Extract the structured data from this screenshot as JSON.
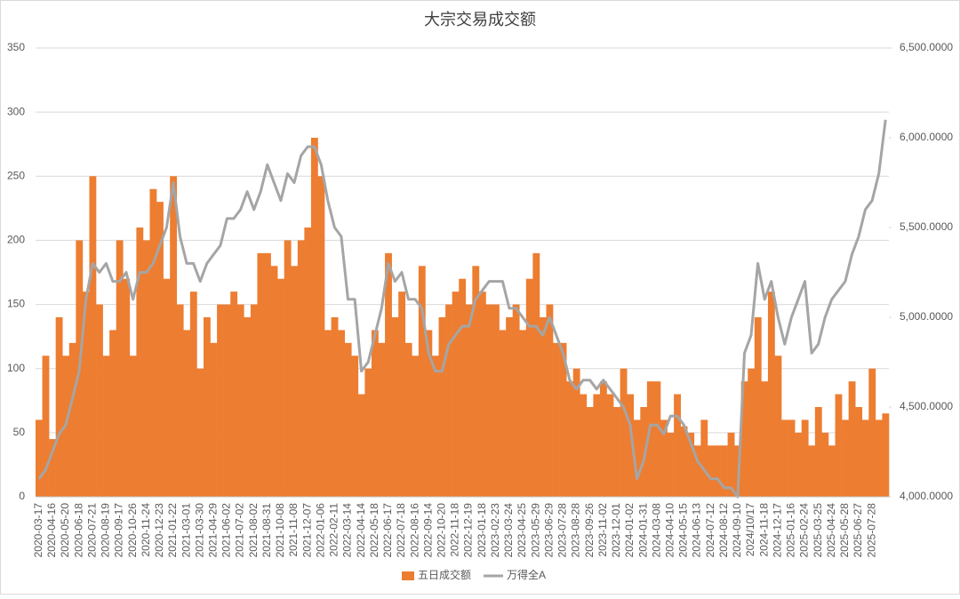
{
  "chart_data": {
    "type": "bar",
    "title": "大宗交易成交额",
    "categories": [
      "2020-03-17",
      null,
      "2020-04-16",
      null,
      "2020-05-20",
      null,
      "2020-06-18",
      null,
      "2020-07-21",
      null,
      "2020-08-19",
      null,
      "2020-09-17",
      null,
      "2020-10-26",
      null,
      "2020-11-24",
      null,
      "2020-12-23",
      null,
      "2021-01-22",
      null,
      "2021-03-01",
      null,
      "2021-03-30",
      null,
      "2021-04-29",
      null,
      "2021-06-02",
      null,
      "2021-07-02",
      null,
      "2021-08-02",
      null,
      "2021-08-31",
      null,
      "2021-10-08",
      null,
      "2021-11-08",
      null,
      "2021-12-07",
      null,
      "2022-01-06",
      null,
      "2022-02-11",
      null,
      "2022-03-14",
      null,
      "2022-04-14",
      null,
      "2022-05-18",
      null,
      "2022-06-17",
      null,
      "2022-07-18",
      null,
      "2022-08-16",
      null,
      "2022-09-14",
      null,
      "2022-10-20",
      null,
      "2022-11-18",
      null,
      "2022-12-19",
      null,
      "2023-01-18",
      null,
      "2023-02-23",
      null,
      "2023-03-24",
      null,
      "2023-04-25",
      null,
      "2023-05-29",
      null,
      "2023-06-29",
      null,
      "2023-07-28",
      null,
      "2023-08-28",
      null,
      "2023-09-26",
      null,
      "2023-11-02",
      null,
      "2023-12-01",
      null,
      "2024-01-02",
      null,
      "2024-01-31",
      null,
      "2024-03-08",
      null,
      "2024-04-10",
      null,
      "2024-05-15",
      null,
      "2024-06-13",
      null,
      "2024-07-12",
      null,
      "2024-08-12",
      null,
      "2024-09-10",
      null,
      "2024/10/17",
      null,
      "2024-11-18",
      null,
      "2024-12-17",
      null,
      "2025-01-16",
      null,
      "2025-02-24",
      null,
      "2025-03-25",
      null,
      "2025-04-24",
      null,
      "2025-05-28",
      null,
      "2025-06-27",
      null,
      "2025-07-28",
      null,
      null
    ],
    "series": [
      {
        "name": "五日成交额",
        "type": "bar",
        "color": "#ed7d31",
        "values": [
          60,
          110,
          45,
          140,
          110,
          120,
          200,
          160,
          250,
          150,
          110,
          130,
          200,
          170,
          110,
          210,
          200,
          240,
          230,
          170,
          250,
          150,
          130,
          160,
          100,
          140,
          120,
          150,
          150,
          160,
          150,
          140,
          150,
          190,
          190,
          180,
          170,
          200,
          180,
          200,
          210,
          280,
          250,
          130,
          140,
          130,
          120,
          110,
          80,
          100,
          130,
          120,
          190,
          140,
          160,
          120,
          110,
          180,
          130,
          110,
          140,
          150,
          160,
          170,
          150,
          180,
          160,
          150,
          150,
          130,
          140,
          150,
          130,
          170,
          190,
          140,
          150,
          120,
          120,
          90,
          100,
          80,
          70,
          80,
          90,
          80,
          70,
          100,
          80,
          60,
          70,
          90,
          90,
          60,
          50,
          80,
          55,
          50,
          40,
          60,
          40,
          40,
          40,
          50,
          40,
          90,
          100,
          140,
          90,
          160,
          110,
          60,
          60,
          50,
          60,
          40,
          70,
          50,
          40,
          80,
          60,
          90,
          70,
          60,
          100,
          60,
          65
        ]
      },
      {
        "name": "万得全A",
        "type": "line",
        "axis": "y2",
        "color": "#a5a5a5",
        "values": [
          4100,
          4150,
          4250,
          4350,
          4400,
          4550,
          4700,
          5100,
          5300,
          5250,
          5300,
          5200,
          5200,
          5250,
          5100,
          5250,
          5250,
          5300,
          5400,
          5500,
          5750,
          5450,
          5300,
          5300,
          5200,
          5300,
          5350,
          5400,
          5550,
          5550,
          5600,
          5700,
          5600,
          5700,
          5850,
          5750,
          5650,
          5800,
          5750,
          5900,
          5950,
          5950,
          5850,
          5650,
          5500,
          5450,
          5100,
          5100,
          4700,
          4750,
          4900,
          5050,
          5300,
          5200,
          5250,
          5100,
          5100,
          5050,
          4800,
          4700,
          4700,
          4850,
          4900,
          4950,
          4950,
          5100,
          5150,
          5200,
          5200,
          5200,
          5050,
          5050,
          5000,
          4950,
          4950,
          4900,
          5000,
          4900,
          4800,
          4650,
          4600,
          4650,
          4650,
          4600,
          4650,
          4600,
          4550,
          4500,
          4400,
          4100,
          4200,
          4400,
          4400,
          4350,
          4450,
          4450,
          4400,
          4300,
          4200,
          4150,
          4100,
          4100,
          4050,
          4050,
          4000,
          4800,
          4900,
          5300,
          5100,
          5200,
          5000,
          4850,
          5000,
          5100,
          5200,
          4800,
          4850,
          5000,
          5100,
          5150,
          5200,
          5350,
          5450,
          5600,
          5650,
          5800,
          6100
        ]
      }
    ],
    "ylim": [
      0,
      350
    ],
    "yticks": [
      0,
      50,
      100,
      150,
      200,
      250,
      300,
      350
    ],
    "y2lim": [
      4000,
      6500
    ],
    "y2ticks": [
      {
        "value": 4000,
        "label": "4,000.0000"
      },
      {
        "value": 4500,
        "label": "4,500.0000"
      },
      {
        "value": 5000,
        "label": "5,000.0000"
      },
      {
        "value": 5500,
        "label": "5,500.0000"
      },
      {
        "value": 6000,
        "label": "6,000.0000"
      },
      {
        "value": 6500,
        "label": "6,500.0000"
      }
    ],
    "grid": true,
    "legend": "bottom"
  }
}
